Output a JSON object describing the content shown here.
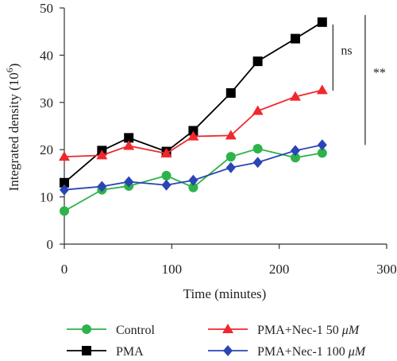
{
  "chart_data": {
    "type": "line",
    "xlabel": "Time (minutes)",
    "ylabel_main": "Integrated density (10",
    "ylabel_exp": "6",
    "ylabel_close": ")",
    "xlim": [
      0,
      300
    ],
    "ylim": [
      0,
      50
    ],
    "xticks": [
      0,
      100,
      200,
      300
    ],
    "yticks": [
      0,
      10,
      20,
      30,
      40,
      50
    ],
    "xtick_labels": [
      "0",
      "100",
      "200",
      "300"
    ],
    "ytick_labels": [
      "0",
      "10",
      "20",
      "30",
      "40",
      "50"
    ],
    "grid": false,
    "legend_position": "bottom",
    "series": [
      {
        "name": "Control",
        "color": "#2db34a",
        "marker": "circle",
        "x": [
          0,
          35,
          60,
          95,
          120,
          155,
          180,
          215,
          240
        ],
        "y": [
          7.0,
          11.5,
          12.3,
          14.5,
          12.0,
          18.5,
          20.2,
          18.3,
          19.3
        ]
      },
      {
        "name": "PMA",
        "color": "#000000",
        "marker": "square",
        "x": [
          0,
          35,
          60,
          95,
          120,
          155,
          180,
          215,
          240
        ],
        "y": [
          13.0,
          19.8,
          22.5,
          19.6,
          24.0,
          32.0,
          38.7,
          43.5,
          47.0
        ]
      },
      {
        "name_prefix": "PMA+Nec-1 50 ",
        "name_unit": "μM",
        "color": "#f0282d",
        "marker": "triangle",
        "x": [
          0,
          35,
          60,
          95,
          120,
          155,
          180,
          215,
          240
        ],
        "y": [
          18.5,
          18.8,
          20.8,
          19.2,
          22.8,
          23.0,
          28.2,
          31.2,
          32.6
        ]
      },
      {
        "name_prefix": "PMA+Nec-1 100 ",
        "name_unit": "μM",
        "color": "#2b45b5",
        "marker": "diamond",
        "x": [
          0,
          35,
          60,
          95,
          120,
          155,
          180,
          215,
          240
        ],
        "y": [
          11.5,
          12.2,
          13.2,
          12.5,
          13.5,
          16.2,
          17.3,
          19.8,
          21.0
        ]
      }
    ],
    "annotations": [
      {
        "text": "ns",
        "y_top": 46.5,
        "y_bottom": 32.5,
        "x": 250
      },
      {
        "text": "**",
        "y_top": 48.5,
        "y_bottom": 21.0,
        "x": 280
      }
    ]
  }
}
